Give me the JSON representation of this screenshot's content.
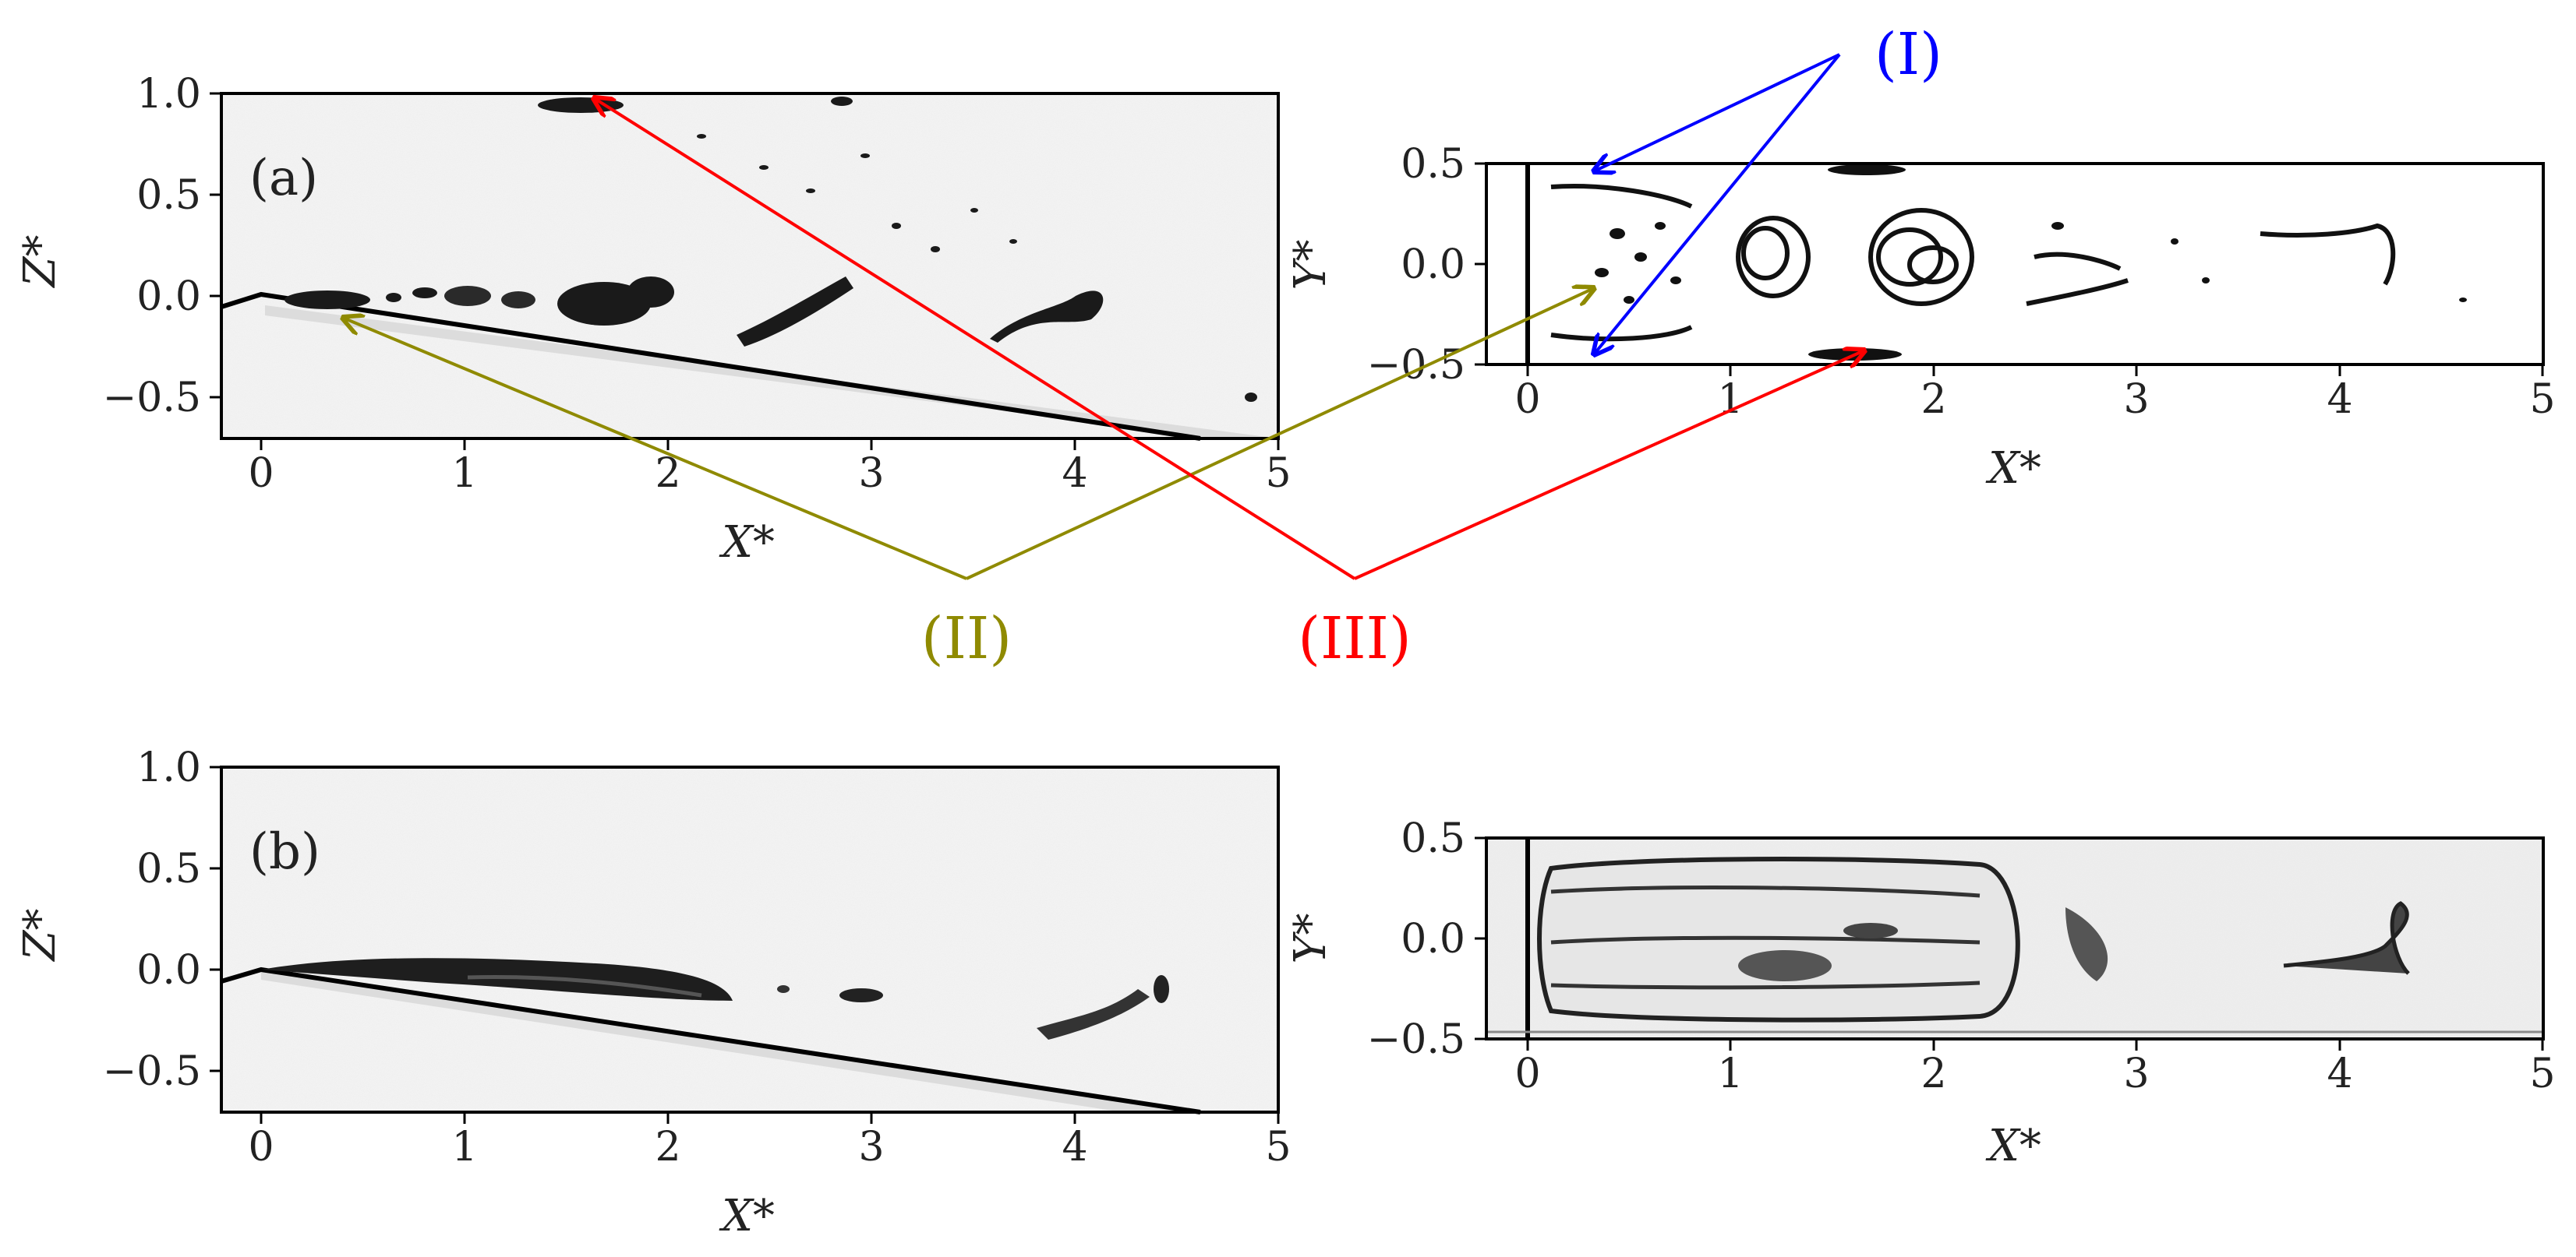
{
  "figure": {
    "panels": [
      {
        "id": "a-side",
        "label": "(a)",
        "xlabel": "X*",
        "ylabel": "Z*",
        "xticks": [
          "0",
          "1",
          "2",
          "3",
          "4",
          "5"
        ],
        "yticks": [
          "1.0",
          "0.5",
          "0.0",
          "−0.5"
        ]
      },
      {
        "id": "a-top",
        "label": "",
        "xlabel": "X*",
        "ylabel": "Y*",
        "xticks": [
          "0",
          "1",
          "2",
          "3",
          "4",
          "5"
        ],
        "yticks": [
          "0.5",
          "0.0",
          "−0.5"
        ]
      },
      {
        "id": "b-side",
        "label": "(b)",
        "xlabel": "X*",
        "ylabel": "Z*",
        "xticks": [
          "0",
          "1",
          "2",
          "3",
          "4",
          "5"
        ],
        "yticks": [
          "1.0",
          "0.5",
          "0.0",
          "−0.5"
        ]
      },
      {
        "id": "b-top",
        "label": "",
        "xlabel": "X*",
        "ylabel": "Y*",
        "xticks": [
          "0",
          "1",
          "2",
          "3",
          "4",
          "5"
        ],
        "yticks": [
          "0.5",
          "0.0",
          "−0.5"
        ]
      }
    ],
    "annotations": [
      {
        "id": "I",
        "text": "(I)",
        "color": "#0000ff"
      },
      {
        "id": "II",
        "text": "(II)",
        "color": "#8f8a00"
      },
      {
        "id": "III",
        "text": "(III)",
        "color": "#ff0000"
      }
    ]
  }
}
